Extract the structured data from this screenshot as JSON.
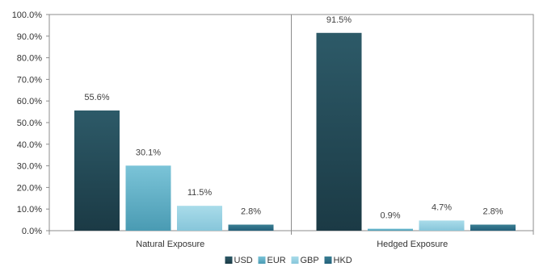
{
  "chart_data": {
    "type": "bar",
    "categories": [
      "Natural Exposure",
      "Hedged Exposure"
    ],
    "series": [
      {
        "name": "USD",
        "values": [
          55.6,
          91.5
        ],
        "labels": [
          "55.6%",
          "91.5%"
        ]
      },
      {
        "name": "EUR",
        "values": [
          30.1,
          0.9
        ],
        "labels": [
          "30.1%",
          "0.9%"
        ]
      },
      {
        "name": "GBP",
        "values": [
          11.5,
          4.7
        ],
        "labels": [
          "11.5%",
          "4.7%"
        ]
      },
      {
        "name": "HKD",
        "values": [
          2.8,
          2.8
        ],
        "labels": [
          "2.8%",
          "2.8%"
        ]
      }
    ],
    "ylim": [
      0,
      100
    ],
    "yticks": [
      "0.0%",
      "10.0%",
      "20.0%",
      "30.0%",
      "40.0%",
      "50.0%",
      "60.0%",
      "70.0%",
      "80.0%",
      "90.0%",
      "100.0%"
    ],
    "grid": false,
    "legend_position": "bottom-center",
    "colors": {
      "USD": [
        "#2d5a68",
        "#1b3a45"
      ],
      "EUR": [
        "#7bc4d8",
        "#4a9bb3"
      ],
      "GBP": [
        "#a9dcea",
        "#87c6da"
      ],
      "HKD": [
        "#3a7f93",
        "#23607a"
      ]
    }
  }
}
